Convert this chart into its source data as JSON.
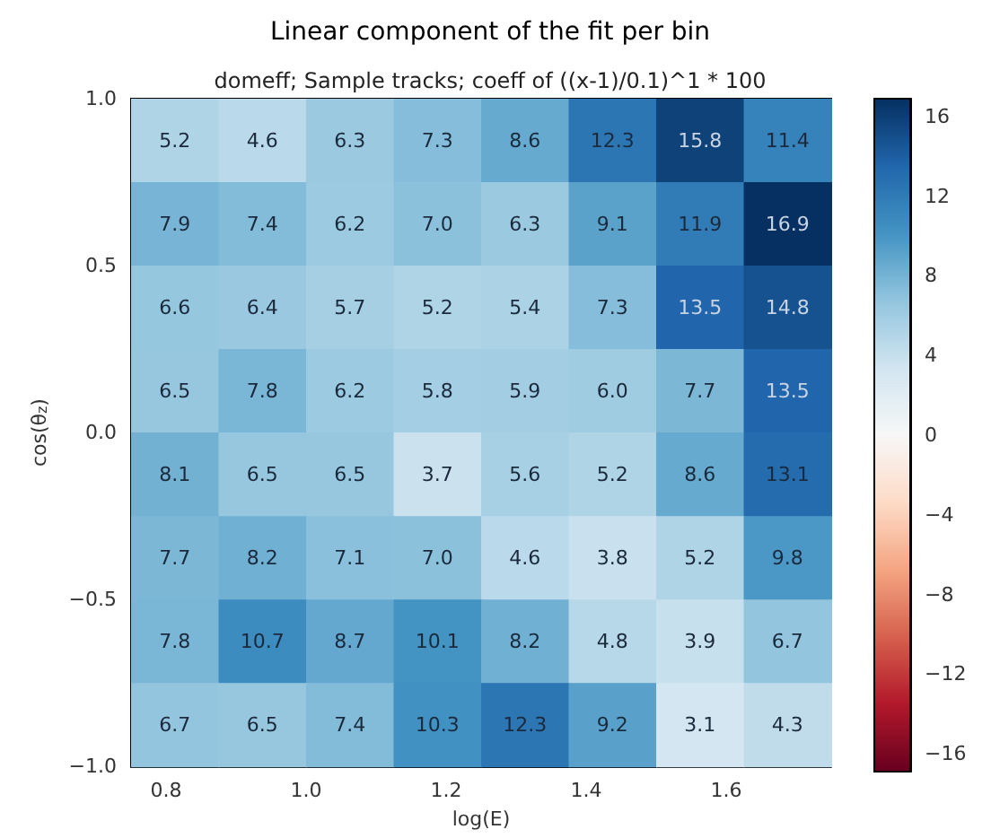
{
  "chart_data": {
    "type": "heatmap",
    "title": "Linear component of the fit per bin",
    "subtitle": "domeff; Sample tracks; coeff of ((x-1)/0.1)^1 * 100",
    "xlabel": "log(E)",
    "ylabel": "cos(θ$_{z}$)",
    "xlim": [
      0.75,
      1.75
    ],
    "ylim": [
      -1,
      1
    ],
    "xticks": [
      0.8,
      {
        "value": 1,
        "label": "1.0"
      },
      1.2,
      1.4,
      1.6
    ],
    "yticks": [
      {
        "value": -1,
        "label": "−1.0"
      },
      {
        "value": -0.5,
        "label": "−0.5"
      },
      {
        "value": 0,
        "label": "0.0"
      },
      0.5,
      {
        "value": 1,
        "label": "1.0"
      }
    ],
    "clim": [
      -16.9,
      16.9
    ],
    "cticks": [
      {
        "value": -16,
        "label": "−16"
      },
      {
        "value": -12,
        "label": "−12"
      },
      {
        "value": -8,
        "label": "−8"
      },
      {
        "value": -4,
        "label": "−4"
      },
      0,
      4,
      8,
      12,
      16
    ],
    "cell_labels": [
      [
        "5.2",
        "4.6",
        "6.3",
        "7.3",
        "8.6",
        "12.3",
        "15.8",
        "11.4"
      ],
      [
        "7.9",
        "7.4",
        "6.2",
        "7.0",
        "6.3",
        "9.1",
        "11.9",
        "16.9"
      ],
      [
        "6.6",
        "6.4",
        "5.7",
        "5.2",
        "5.4",
        "7.3",
        "13.5",
        "14.8"
      ],
      [
        "6.5",
        "7.8",
        "6.2",
        "5.8",
        "5.9",
        "6.0",
        "7.7",
        "13.5"
      ],
      [
        "8.1",
        "6.5",
        "6.5",
        "3.7",
        "5.6",
        "5.2",
        "8.6",
        "13.1"
      ],
      [
        "7.7",
        "8.2",
        "7.1",
        "7.0",
        "4.6",
        "3.8",
        "5.2",
        "9.8"
      ],
      [
        "7.8",
        "10.7",
        "8.7",
        "10.1",
        "8.2",
        "4.8",
        "3.9",
        "6.7"
      ],
      [
        "6.7",
        "6.5",
        "7.4",
        "10.3",
        "12.3",
        "9.2",
        "3.1",
        "4.3"
      ]
    ],
    "data_labels": true,
    "cells": [
      [
        5.2,
        4.6,
        6.3,
        7.3,
        8.6,
        12.3,
        15.8,
        11.4
      ],
      [
        7.9,
        7.4,
        6.2,
        7.0,
        6.3,
        9.1,
        11.9,
        16.9
      ],
      [
        6.6,
        6.4,
        5.7,
        5.2,
        5.4,
        7.3,
        13.5,
        14.8
      ],
      [
        6.5,
        7.8,
        6.2,
        5.8,
        5.9,
        6.0,
        7.7,
        13.5
      ],
      [
        8.1,
        6.5,
        6.5,
        3.7,
        5.6,
        5.2,
        8.6,
        13.1
      ],
      [
        7.7,
        8.2,
        7.1,
        7.0,
        4.6,
        3.8,
        5.2,
        9.8
      ],
      [
        7.8,
        10.7,
        8.7,
        10.1,
        8.2,
        4.8,
        3.9,
        6.7
      ],
      [
        6.7,
        6.5,
        7.4,
        10.3,
        12.3,
        9.2,
        3.1,
        4.3
      ]
    ]
  }
}
